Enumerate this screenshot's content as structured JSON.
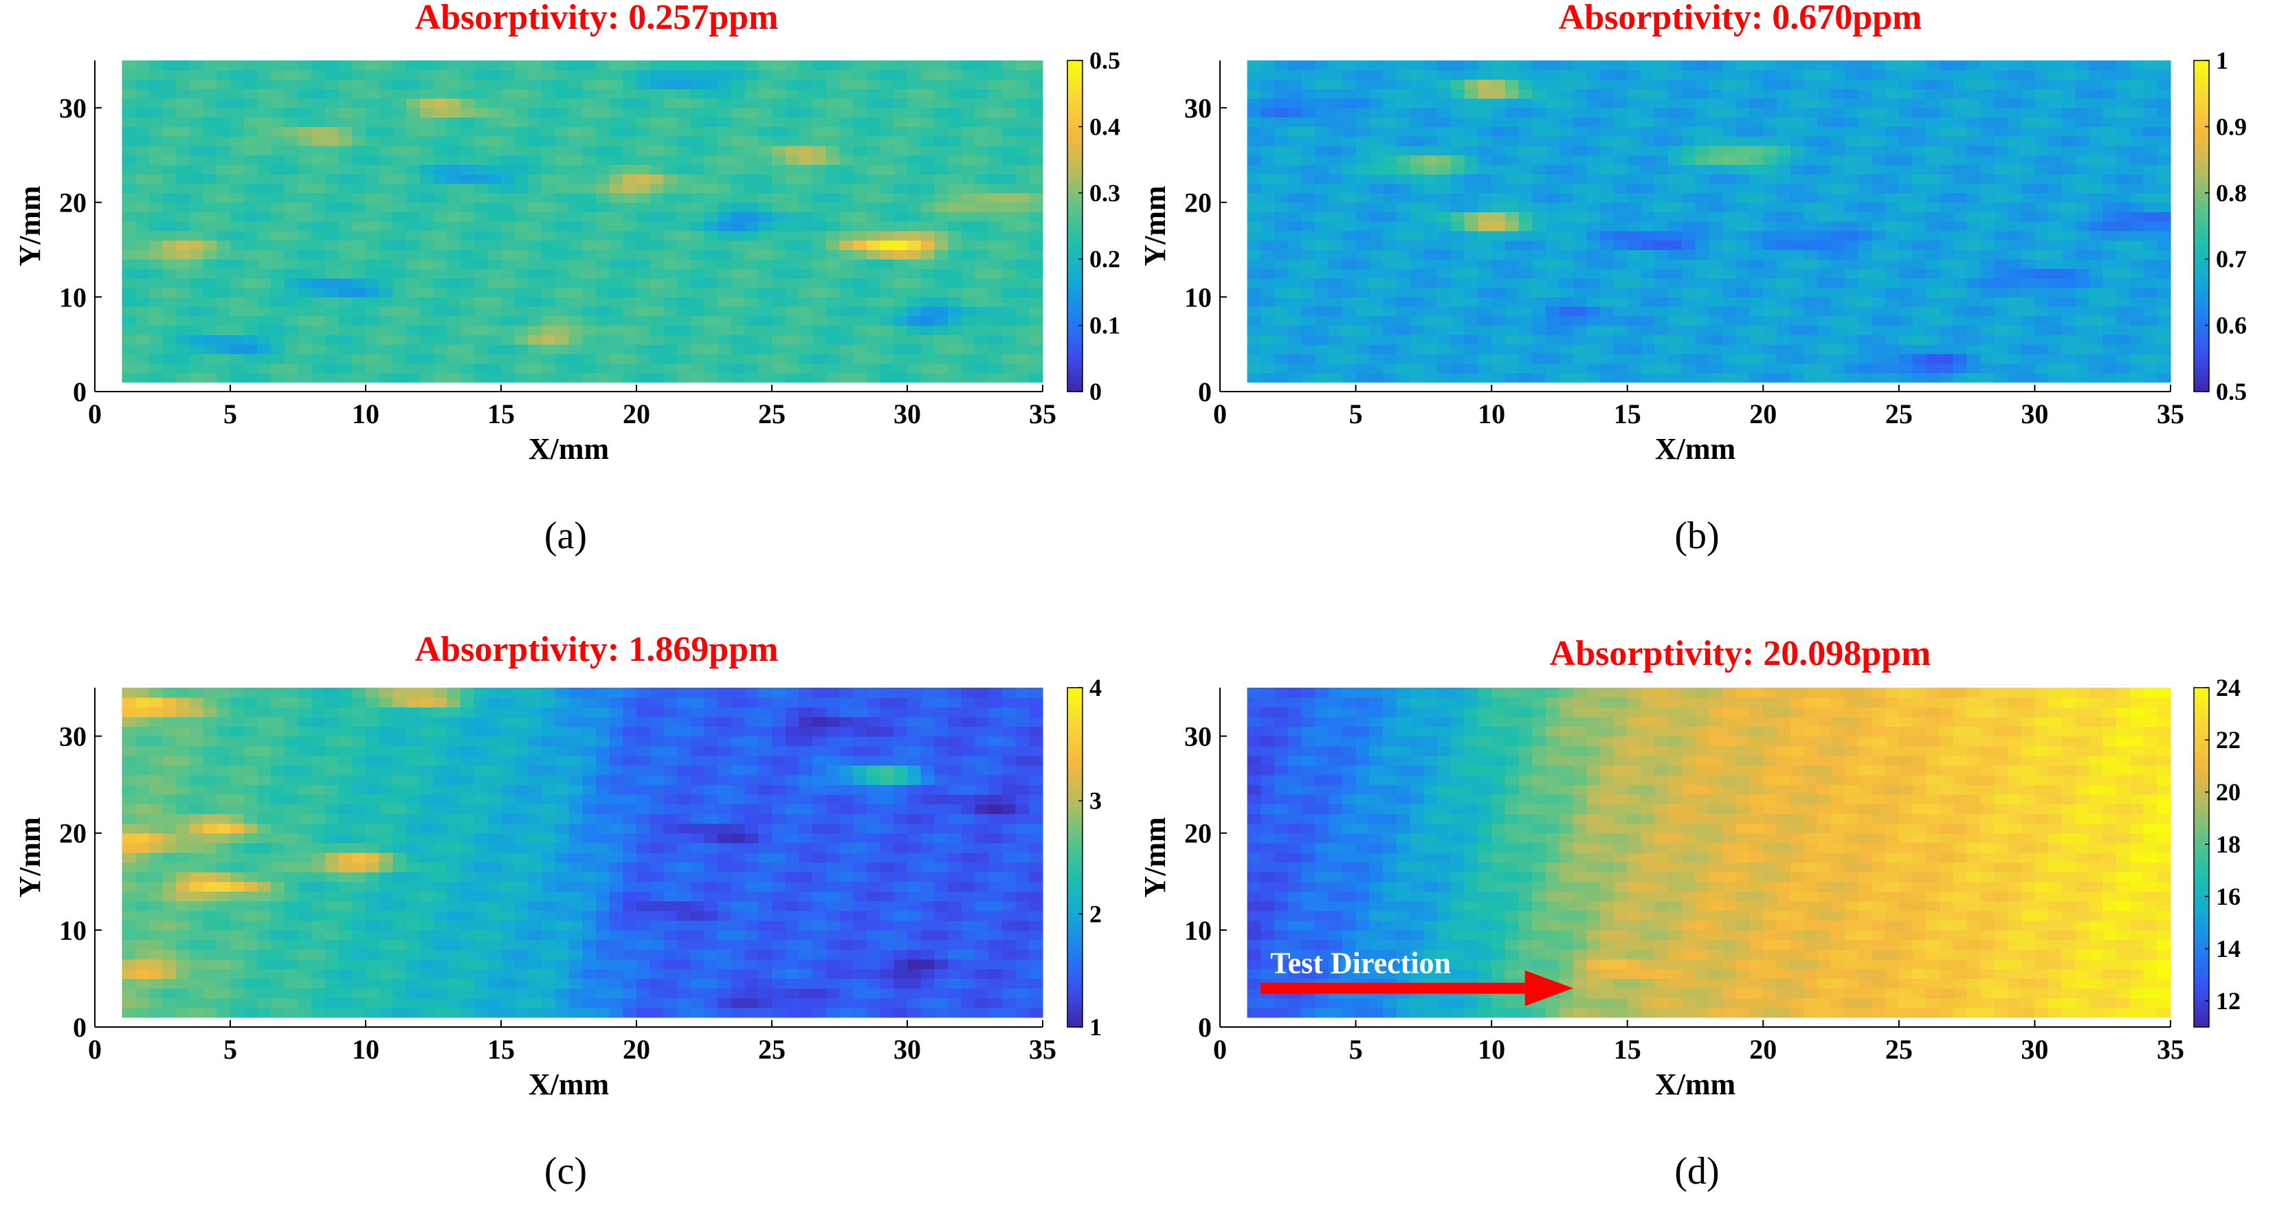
{
  "figure": {
    "colormap_stops": [
      "#3e26a8",
      "#3a4ff0",
      "#1f7ff2",
      "#14a9d6",
      "#1fbfac",
      "#5ec387",
      "#b8bc5e",
      "#f5b83e",
      "#f8d63a",
      "#f9fb0e"
    ],
    "title_color": "#ff0000",
    "arrow_color": "#ff0000"
  },
  "chart_data": [
    {
      "type": "heatmap",
      "panel_label": "(a)",
      "title": "Absorptivity: 0.257ppm",
      "xlabel": "X/mm",
      "ylabel": "Y/mm",
      "xlim": [
        0,
        35
      ],
      "ylim": [
        0,
        35
      ],
      "data_extent": {
        "x": [
          1,
          35
        ],
        "y": [
          1,
          35
        ]
      },
      "xticks": [
        "0",
        "5",
        "10",
        "15",
        "20",
        "25",
        "30",
        "35"
      ],
      "yticks": [
        "0",
        "10",
        "20",
        "30"
      ],
      "colorbar": {
        "range": [
          0,
          0.5
        ],
        "ticks": [
          "0",
          "0.1",
          "0.2",
          "0.3",
          "0.4",
          "0.5"
        ]
      },
      "field": {
        "base": 0.24,
        "gradient": [],
        "blobs": [
          {
            "x": 20,
            "y": 22,
            "value": 0.36
          },
          {
            "x": 29.5,
            "y": 15.5,
            "value": 0.5
          },
          {
            "x": 3,
            "y": 15,
            "value": 0.36
          },
          {
            "x": 13,
            "y": 30,
            "value": 0.34
          },
          {
            "x": 26,
            "y": 25,
            "value": 0.34
          },
          {
            "x": 8,
            "y": 27,
            "value": 0.33
          },
          {
            "x": 33,
            "y": 20,
            "value": 0.34
          },
          {
            "x": 17,
            "y": 6,
            "value": 0.33
          },
          {
            "x": 9,
            "y": 11,
            "value": 0.12
          },
          {
            "x": 24,
            "y": 18,
            "value": 0.12
          },
          {
            "x": 14,
            "y": 23,
            "value": 0.13
          },
          {
            "x": 31,
            "y": 8,
            "value": 0.12
          },
          {
            "x": 5,
            "y": 5,
            "value": 0.13
          },
          {
            "x": 22,
            "y": 33,
            "value": 0.13
          }
        ]
      }
    },
    {
      "type": "heatmap",
      "panel_label": "(b)",
      "title": "Absorptivity: 0.670ppm",
      "xlabel": "X/mm",
      "ylabel": "Y/mm",
      "xlim": [
        0,
        35
      ],
      "ylim": [
        0,
        35
      ],
      "data_extent": {
        "x": [
          1,
          35
        ],
        "y": [
          1,
          35
        ]
      },
      "xticks": [
        "0",
        "5",
        "10",
        "15",
        "20",
        "25",
        "30",
        "35"
      ],
      "yticks": [
        "0",
        "10",
        "20",
        "30"
      ],
      "colorbar": {
        "range": [
          0.5,
          1
        ],
        "ticks": [
          "0.5",
          "0.6",
          "0.7",
          "0.8",
          "0.9",
          "1"
        ]
      },
      "field": {
        "base": 0.66,
        "gradient": [],
        "blobs": [
          {
            "x": 10,
            "y": 18,
            "value": 0.87
          },
          {
            "x": 10,
            "y": 32,
            "value": 0.85
          },
          {
            "x": 19,
            "y": 25,
            "value": 0.83
          },
          {
            "x": 7.5,
            "y": 24,
            "value": 0.82
          },
          {
            "x": 16,
            "y": 16,
            "value": 0.56
          },
          {
            "x": 26,
            "y": 3,
            "value": 0.56
          },
          {
            "x": 34,
            "y": 18,
            "value": 0.56
          },
          {
            "x": 30,
            "y": 12,
            "value": 0.58
          },
          {
            "x": 22,
            "y": 16,
            "value": 0.58
          },
          {
            "x": 3,
            "y": 30,
            "value": 0.59
          },
          {
            "x": 13,
            "y": 8,
            "value": 0.6
          }
        ]
      }
    },
    {
      "type": "heatmap",
      "panel_label": "(c)",
      "title": "Absorptivity: 1.869ppm",
      "xlabel": "X/mm",
      "ylabel": "Y/mm",
      "xlim": [
        0,
        35
      ],
      "ylim": [
        0,
        35
      ],
      "data_extent": {
        "x": [
          1,
          35
        ],
        "y": [
          1,
          35
        ]
      },
      "xticks": [
        "0",
        "5",
        "10",
        "15",
        "20",
        "25",
        "30",
        "35"
      ],
      "yticks": [
        "0",
        "10",
        "20",
        "30"
      ],
      "colorbar": {
        "range": [
          1,
          4
        ],
        "ticks": [
          "1",
          "2",
          "3",
          "4"
        ]
      },
      "field": {
        "base": 2.2,
        "gradient": [
          [
            1,
            2.7
          ],
          [
            10,
            2.3
          ],
          [
            17,
            2.0
          ],
          [
            20,
            1.5
          ],
          [
            35,
            1.4
          ]
        ],
        "blobs": [
          {
            "x": 2,
            "y": 33,
            "value": 3.8
          },
          {
            "x": 4.5,
            "y": 14.5,
            "value": 3.7
          },
          {
            "x": 1.5,
            "y": 19,
            "value": 3.5
          },
          {
            "x": 9.5,
            "y": 17,
            "value": 3.5
          },
          {
            "x": 4.5,
            "y": 20.5,
            "value": 3.4
          },
          {
            "x": 12,
            "y": 34,
            "value": 3.4
          },
          {
            "x": 2,
            "y": 6,
            "value": 3.3
          },
          {
            "x": 29,
            "y": 26,
            "value": 2.6
          },
          {
            "x": 27,
            "y": 31,
            "value": 1.05
          },
          {
            "x": 23,
            "y": 20,
            "value": 1.1
          },
          {
            "x": 30,
            "y": 6,
            "value": 1.05
          },
          {
            "x": 21,
            "y": 12,
            "value": 1.15
          },
          {
            "x": 33,
            "y": 23,
            "value": 1.1
          },
          {
            "x": 25,
            "y": 3,
            "value": 1.1
          }
        ]
      }
    },
    {
      "type": "heatmap",
      "panel_label": "(d)",
      "title": "Absorptivity: 20.098ppm",
      "xlabel": "X/mm",
      "ylabel": "Y/mm",
      "xlim": [
        0,
        35
      ],
      "ylim": [
        0,
        35
      ],
      "data_extent": {
        "x": [
          1,
          35
        ],
        "y": [
          1,
          35
        ]
      },
      "xticks": [
        "0",
        "5",
        "10",
        "15",
        "20",
        "25",
        "30",
        "35"
      ],
      "yticks": [
        "0",
        "10",
        "20",
        "30"
      ],
      "colorbar": {
        "range": [
          11,
          24
        ],
        "ticks": [
          "12",
          "14",
          "16",
          "18",
          "20",
          "22",
          "24"
        ]
      },
      "field": {
        "base": 18,
        "gradient": [
          [
            1,
            12.5
          ],
          [
            5,
            14.0
          ],
          [
            9,
            16.0
          ],
          [
            11,
            17.5
          ],
          [
            14,
            19.5
          ],
          [
            18,
            20.5
          ],
          [
            25,
            21.5
          ],
          [
            30,
            22.5
          ],
          [
            35,
            23.5
          ]
        ],
        "blobs": [
          {
            "x": 15,
            "y": 6,
            "value": 21.5
          }
        ]
      },
      "annotation": {
        "text": "Test Direction",
        "arrow_from": [
          1.5,
          4
        ],
        "arrow_to": [
          13,
          4
        ]
      }
    }
  ]
}
